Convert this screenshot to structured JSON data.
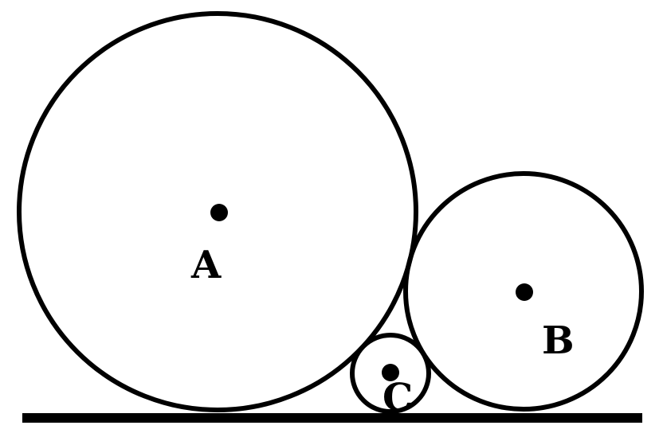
{
  "labels": {
    "circle_a": "A",
    "circle_b": "B",
    "circle_c": "C"
  },
  "colors": {
    "stroke": "#000000",
    "background": "#ffffff"
  }
}
